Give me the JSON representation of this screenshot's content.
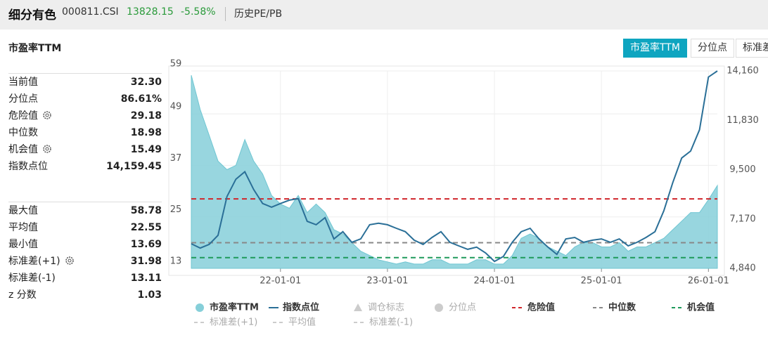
{
  "header": {
    "title": "细分有色",
    "code": "000811.CSI",
    "price": "13828.15",
    "change": "-5.58%",
    "link": "历史PE/PB"
  },
  "section_title": "市盈率TTM",
  "tabs": [
    "市盈率TTM",
    "分位点",
    "标准差"
  ],
  "stats": {
    "group1": [
      [
        "当前值",
        "32.30"
      ],
      [
        "分位点",
        "86.61%"
      ],
      [
        "危险值",
        "29.18"
      ],
      [
        "中位数",
        "18.98"
      ],
      [
        "机会值",
        "15.49"
      ],
      [
        "指数点位",
        "14,159.45"
      ]
    ],
    "group2": [
      [
        "最大值",
        "58.78"
      ],
      [
        "平均值",
        "22.55"
      ],
      [
        "最小值",
        "13.69"
      ],
      [
        "标准差(+1)",
        "31.98"
      ],
      [
        "标准差(-1)",
        "13.11"
      ],
      [
        "z 分数",
        "1.03"
      ]
    ]
  },
  "chart_data": {
    "type": "area-line",
    "x": [
      "21-03-01",
      "21-04-01",
      "21-05-01",
      "21-06-01",
      "21-07-01",
      "21-08-01",
      "21-09-01",
      "21-10-01",
      "21-11-01",
      "21-12-01",
      "22-01-01",
      "22-02-01",
      "22-03-01",
      "22-04-01",
      "22-05-01",
      "22-06-01",
      "22-07-01",
      "22-08-01",
      "22-09-01",
      "22-10-01",
      "22-11-01",
      "22-12-01",
      "23-01-01",
      "23-02-01",
      "23-03-01",
      "23-04-01",
      "23-05-01",
      "23-06-01",
      "23-07-01",
      "23-08-01",
      "23-09-01",
      "23-10-01",
      "23-11-01",
      "23-12-01",
      "24-01-01",
      "24-02-01",
      "24-03-01",
      "24-04-01",
      "24-05-01",
      "24-06-01",
      "24-07-01",
      "24-08-01",
      "24-09-01",
      "24-10-01",
      "24-11-01",
      "24-12-01",
      "25-01-01",
      "25-02-01",
      "25-03-01",
      "25-04-01",
      "25-05-01",
      "25-06-01",
      "25-07-01",
      "25-08-01",
      "25-09-01",
      "25-10-01",
      "25-11-01",
      "25-12-01",
      "26-01-01",
      "26-02-01"
    ],
    "series": [
      {
        "name": "市盈率TTM",
        "color": "#86cfd9",
        "values": [
          58,
          50,
          44,
          38,
          36,
          37,
          43,
          38,
          35,
          30,
          28,
          27,
          30,
          26,
          28,
          26,
          22,
          21,
          19,
          17,
          16,
          15,
          14.5,
          14,
          14.5,
          14,
          14,
          15,
          15,
          14,
          14,
          14,
          15,
          15,
          14,
          14,
          16,
          20,
          21,
          20,
          18,
          17,
          16,
          18,
          19,
          19,
          18,
          18,
          19,
          17,
          18,
          18,
          19,
          20,
          22,
          24,
          26,
          26,
          29,
          32.3
        ]
      },
      {
        "name": "指数点位",
        "color": "#2a6f97",
        "axis": "y2",
        "values": [
          6000,
          5800,
          5970,
          6400,
          8230,
          9050,
          9400,
          8560,
          7900,
          7730,
          7900,
          8060,
          8130,
          7060,
          6900,
          7230,
          6230,
          6570,
          6070,
          6230,
          6900,
          6970,
          6900,
          6730,
          6570,
          6170,
          5970,
          6300,
          6570,
          6070,
          5900,
          5740,
          5840,
          5570,
          5170,
          5400,
          6070,
          6570,
          6730,
          6230,
          5840,
          5500,
          6230,
          6300,
          6070,
          6170,
          6230,
          6070,
          6230,
          5900,
          6070,
          6300,
          6570,
          7560,
          8890,
          10050,
          10380,
          11380,
          13870,
          14159.45
        ]
      }
    ],
    "ref_lines": [
      {
        "name": "危险值",
        "value": 29.18,
        "color": "#d0262b"
      },
      {
        "name": "中位数",
        "value": 18.98,
        "color": "#888888"
      },
      {
        "name": "机会值",
        "value": 15.49,
        "color": "#1e9a5a"
      }
    ],
    "inactive_legend": [
      "调仓标志",
      "分位点",
      "标准差(+1)",
      "平均值",
      "标准差(-1)"
    ],
    "ylim": [
      13,
      59
    ],
    "yticks": [
      13,
      25,
      37,
      49,
      59
    ],
    "y2lim": [
      4840,
      14160
    ],
    "y2ticks": [
      {
        "value": 4840,
        "label": "4,840"
      },
      {
        "value": 7170,
        "label": "7,170"
      },
      {
        "value": 9500,
        "label": "9,500"
      },
      {
        "value": 11830,
        "label": "11,830"
      },
      {
        "value": 14160,
        "label": "14,160"
      }
    ],
    "xticks": [
      "22-01-01",
      "23-01-01",
      "24-01-01",
      "25-01-01",
      "26-01-01"
    ],
    "grid": true
  }
}
